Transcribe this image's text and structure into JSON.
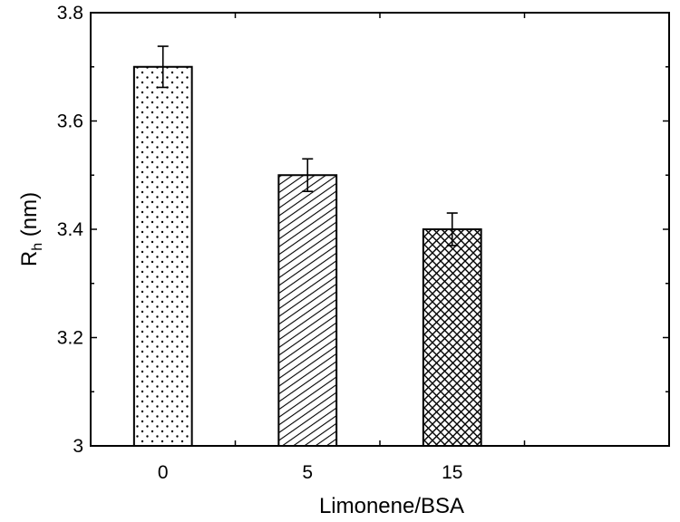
{
  "chart_data": {
    "type": "bar",
    "categories": [
      "0",
      "5",
      "15"
    ],
    "values": [
      3.7,
      3.5,
      3.4
    ],
    "errors": [
      0.038,
      0.03,
      0.03
    ],
    "patterns": [
      "dots",
      "diagonal-hatch",
      "crosshatch"
    ],
    "xlabel": "Limonene/BSA",
    "ylabel_main": "R",
    "ylabel_sub": "h",
    "ylabel_unit": " (nm)",
    "ylim": [
      3.0,
      3.8
    ],
    "yticks": [
      "3",
      "3.2",
      "3.4",
      "3.6",
      "3.8"
    ],
    "grid": false,
    "legend": "none"
  }
}
